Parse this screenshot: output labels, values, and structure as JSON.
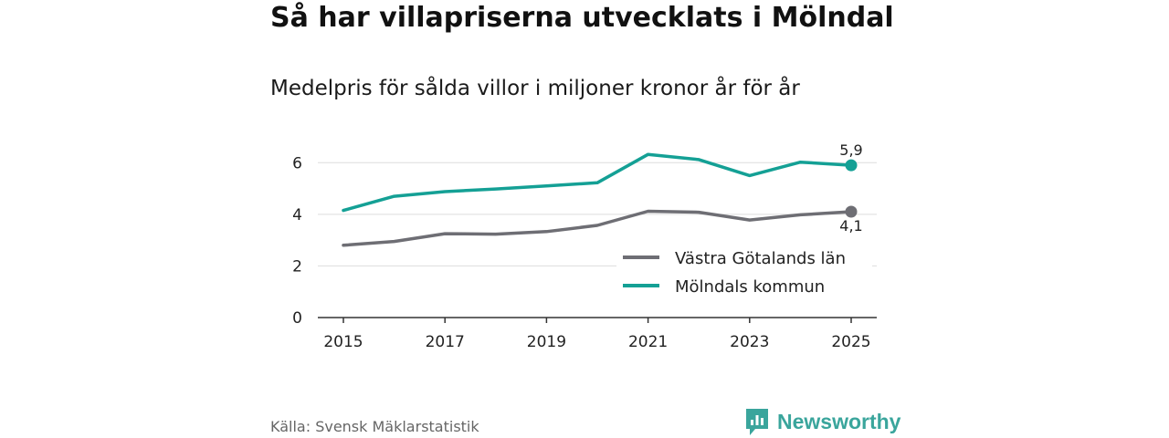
{
  "title": "Så har villapriserna utvecklats i Mölndal",
  "subtitle": "Medelpris för sålda villor i miljoner kronor år för år",
  "source": "Källa: Svensk Mäklarstatistik",
  "brand": {
    "name": "Newsworthy",
    "icon": "newsworthy-logo-icon",
    "color": "#3aa59c"
  },
  "chart_data": {
    "type": "line",
    "title": "Så har villapriserna utvecklats i Mölndal",
    "subtitle": "Medelpris för sålda villor i miljoner kronor år för år",
    "xlabel": "",
    "ylabel": "",
    "x": [
      2015,
      2016,
      2017,
      2018,
      2019,
      2020,
      2021,
      2022,
      2023,
      2024,
      2025
    ],
    "x_ticks": [
      "2015",
      "2017",
      "2019",
      "2021",
      "2023",
      "2025"
    ],
    "y_ticks": [
      "0",
      "2",
      "4",
      "6"
    ],
    "ylim": [
      0,
      7
    ],
    "xlim": [
      2014.5,
      2025.5
    ],
    "grid": true,
    "legend_position": "right",
    "series": [
      {
        "name": "Västra Götalands län",
        "color": "#6e6e74",
        "values": [
          2.8,
          2.95,
          3.25,
          3.23,
          3.33,
          3.57,
          4.12,
          4.08,
          3.78,
          3.98,
          4.1
        ],
        "end_label": "4,1"
      },
      {
        "name": "Mölndals kommun",
        "color": "#14a095",
        "values": [
          4.15,
          4.7,
          4.88,
          4.98,
          5.1,
          5.22,
          6.32,
          6.12,
          5.5,
          6.02,
          5.9
        ],
        "end_label": "5,9"
      }
    ]
  }
}
